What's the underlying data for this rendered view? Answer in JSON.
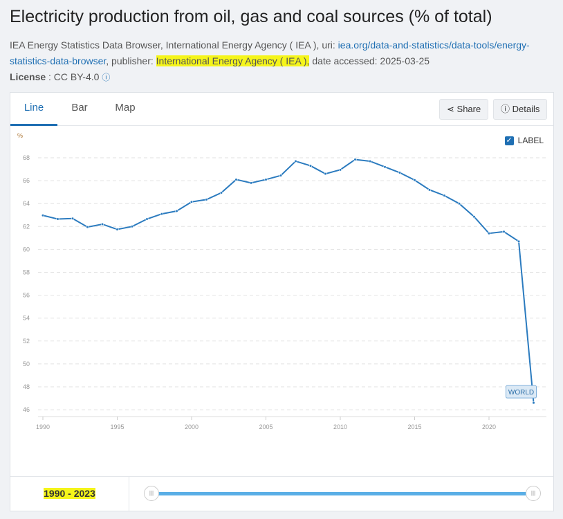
{
  "title": "Electricity production from oil, gas and coal sources (% of total)",
  "meta": {
    "source": "IEA Energy Statistics Data Browser, International Energy Agency ( IEA ), uri: ",
    "uri": "iea.org/data-and-statistics/data-tools/energy-statistics-data-browser",
    "publisher_label": ", publisher: ",
    "publisher": "International Energy Agency ( IEA ),",
    "accessed": " date accessed: 2025-03-25",
    "license_label": "License",
    "license": " : CC BY-4.0"
  },
  "tabs": [
    "Line",
    "Bar",
    "Map"
  ],
  "buttons": {
    "share": "Share",
    "details": "Details"
  },
  "label_toggle": "LABEL",
  "range": "1990 - 2023",
  "chart_data": {
    "type": "line",
    "title": "Electricity production from oil, gas and coal sources (% of total)",
    "ylabel": "%",
    "xlabel": "",
    "ylim": [
      45.5,
      68.5
    ],
    "yticks": [
      46,
      48,
      50,
      52,
      54,
      56,
      58,
      60,
      62,
      64,
      66,
      68
    ],
    "xticks": [
      1990,
      1995,
      2000,
      2005,
      2010,
      2015,
      2020
    ],
    "series": [
      {
        "name": "WORLD",
        "color": "#2b7bbf",
        "x": [
          1990,
          1991,
          1992,
          1993,
          1994,
          1995,
          1996,
          1997,
          1998,
          1999,
          2000,
          2001,
          2002,
          2003,
          2004,
          2005,
          2006,
          2007,
          2008,
          2009,
          2010,
          2011,
          2012,
          2013,
          2014,
          2015,
          2016,
          2017,
          2018,
          2019,
          2020,
          2021,
          2022,
          2023
        ],
        "values": [
          62.97,
          62.65,
          62.7,
          61.95,
          62.2,
          61.75,
          62.0,
          62.65,
          63.1,
          63.35,
          64.15,
          64.35,
          64.95,
          66.1,
          65.8,
          66.1,
          66.45,
          67.7,
          67.3,
          66.6,
          66.95,
          67.85,
          67.7,
          67.2,
          66.7,
          66.05,
          65.2,
          64.7,
          64.0,
          62.85,
          61.4,
          61.55,
          60.7,
          46.6
        ]
      }
    ],
    "grid": true
  }
}
